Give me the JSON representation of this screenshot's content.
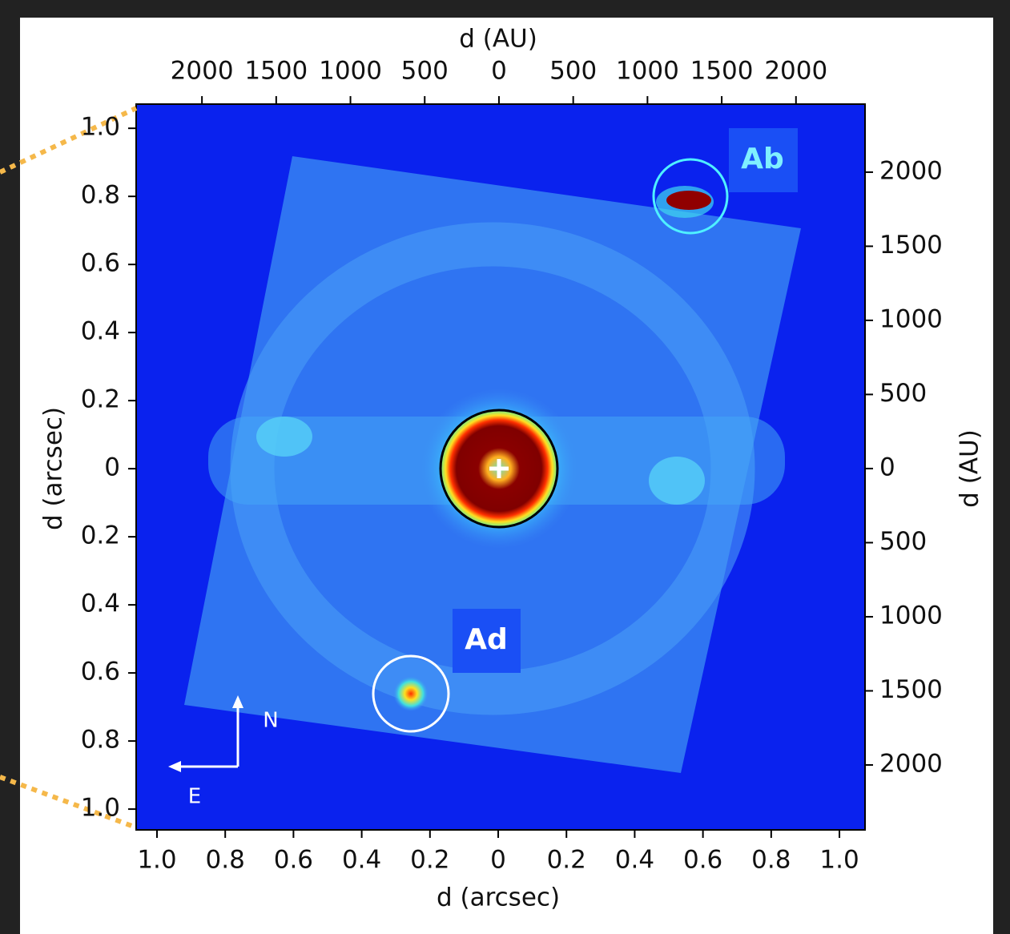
{
  "chart_data": {
    "type": "image",
    "x_label": "d (arcsec)",
    "y_label": "d (arcsec)",
    "x2_label": "d (AU)",
    "y2_label": "d (AU)",
    "xlim": [
      1.061,
      -1.075
    ],
    "xticks": [
      {
        "value": 1,
        "label": "1.0"
      },
      0.8,
      0.6,
      0.4,
      0.2,
      0,
      {
        "value": -0.2,
        "label": "0.2"
      },
      {
        "value": -0.4,
        "label": "0.4"
      },
      {
        "value": -0.6,
        "label": "0.6"
      },
      {
        "value": -0.8,
        "label": "0.8"
      },
      {
        "value": -1,
        "label": "1.0"
      }
    ],
    "ylim": [
      -1.061,
      1.071
    ],
    "yticks": [
      {
        "value": 1,
        "label": "1.0"
      },
      0.8,
      0.6,
      0.4,
      0.2,
      0,
      {
        "value": -0.2,
        "label": "0.2"
      },
      {
        "value": -0.4,
        "label": "0.4"
      },
      {
        "value": -0.6,
        "label": "0.6"
      },
      {
        "value": -0.8,
        "label": "0.8"
      },
      {
        "value": -1,
        "label": "1.0"
      }
    ],
    "x2lim": [
      2443,
      -2465
    ],
    "x2ticks": [
      2000,
      1500,
      1000,
      500,
      0,
      {
        "value": -500,
        "label": "500"
      },
      {
        "value": -1000,
        "label": "1000"
      },
      {
        "value": -1500,
        "label": "1500"
      },
      {
        "value": -2000,
        "label": "2000"
      }
    ],
    "y2lim": [
      -2438,
      2459
    ],
    "y2ticks": [
      2000,
      1500,
      1000,
      500,
      0,
      {
        "value": -500,
        "label": "500"
      },
      {
        "value": -1000,
        "label": "1000"
      },
      {
        "value": -1500,
        "label": "1500"
      },
      {
        "value": -2000,
        "label": "2000"
      }
    ],
    "annotations": [
      "Ab",
      "Ad",
      "N",
      "E"
    ]
  }
}
